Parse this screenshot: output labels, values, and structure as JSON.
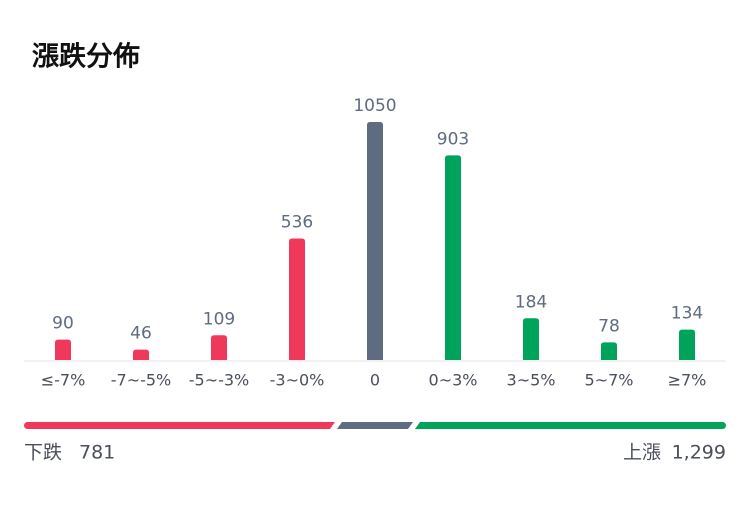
{
  "chart_data": {
    "type": "bar",
    "title": "漲跌分佈",
    "categories": [
      "≤-7%",
      "-7~-5%",
      "-5~-3%",
      "-3~0%",
      "0",
      "0~3%",
      "3~5%",
      "5~7%",
      "≥7%"
    ],
    "values": [
      90,
      46,
      109,
      536,
      1050,
      903,
      184,
      78,
      134
    ],
    "colors": [
      "#f0395a",
      "#f0395a",
      "#f0395a",
      "#f0395a",
      "#5f6b80",
      "#00a35a",
      "#00a35a",
      "#00a35a",
      "#00a35a"
    ],
    "ylim": [
      0,
      1050
    ]
  },
  "summary": {
    "labels": [
      "下跌",
      "上漲"
    ],
    "values": [
      781,
      1299
    ],
    "value_labels": [
      "781",
      "1,299"
    ]
  }
}
